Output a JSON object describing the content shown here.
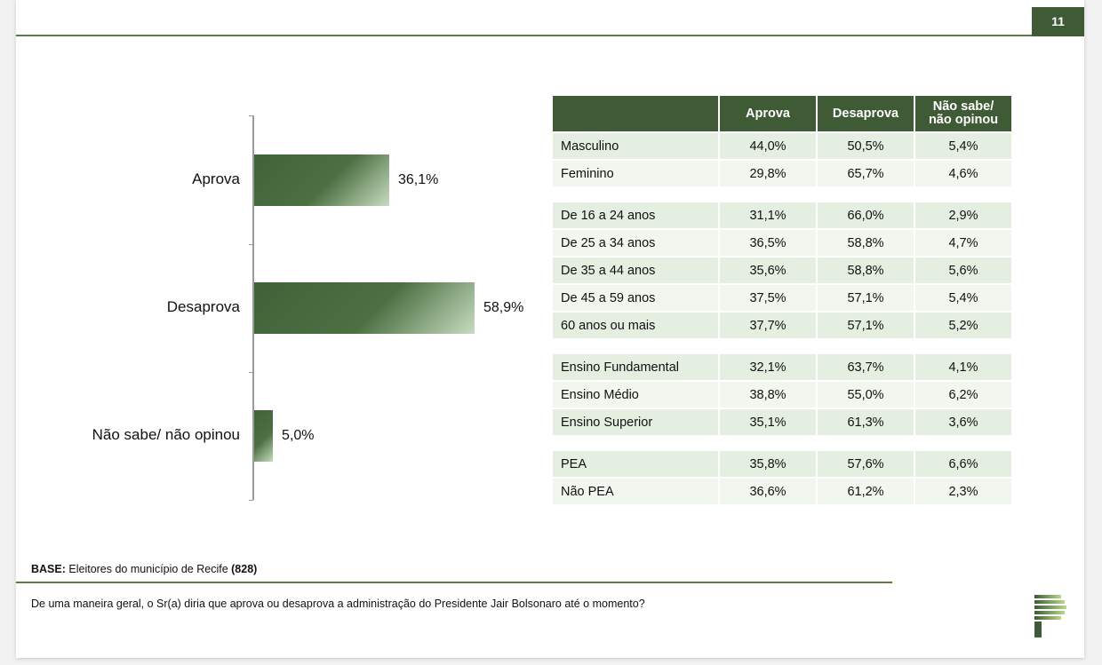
{
  "page_number": "11",
  "chart_data": {
    "type": "bar",
    "orientation": "horizontal",
    "categories": [
      "Aprova",
      "Desaprova",
      "Não sabe/ não opinou"
    ],
    "values": [
      36.1,
      58.9,
      5.0
    ],
    "value_labels": [
      "36,1%",
      "58,9%",
      "5,0%"
    ],
    "xlim": [
      0,
      100
    ],
    "grid": false
  },
  "table": {
    "headers": [
      "",
      "Aprova",
      "Desaprova",
      "Não sabe/ não opinou"
    ],
    "groups": [
      [
        [
          "Masculino",
          "44,0%",
          "50,5%",
          "5,4%"
        ],
        [
          "Feminino",
          "29,8%",
          "65,7%",
          "4,6%"
        ]
      ],
      [
        [
          "De 16 a 24 anos",
          "31,1%",
          "66,0%",
          "2,9%"
        ],
        [
          "De 25 a 34 anos",
          "36,5%",
          "58,8%",
          "4,7%"
        ],
        [
          "De 35 a 44 anos",
          "35,6%",
          "58,8%",
          "5,6%"
        ],
        [
          "De 45 a 59 anos",
          "37,5%",
          "57,1%",
          "5,4%"
        ],
        [
          "60 anos ou mais",
          "37,7%",
          "57,1%",
          "5,2%"
        ]
      ],
      [
        [
          "Ensino Fundamental",
          "32,1%",
          "63,7%",
          "4,1%"
        ],
        [
          "Ensino Médio",
          "38,8%",
          "55,0%",
          "6,2%"
        ],
        [
          "Ensino Superior",
          "35,1%",
          "61,3%",
          "3,6%"
        ]
      ],
      [
        [
          "PEA",
          "35,8%",
          "57,6%",
          "6,6%"
        ],
        [
          "Não PEA",
          "36,6%",
          "61,2%",
          "2,3%"
        ]
      ]
    ]
  },
  "base": {
    "label": "BASE:",
    "text": " Eleitores do município de Recife ",
    "count": "(828)"
  },
  "question": "De uma maneira geral, o Sr(a) diria que aprova ou desaprova a administração do Presidente Jair Bolsonaro até o momento?",
  "colors": {
    "accent": "#3e5b36",
    "line": "#5b7a45",
    "row_dark": "#e4eee1",
    "row_light": "#f1f6ef"
  },
  "logo_icon": "brand-logo-icon"
}
